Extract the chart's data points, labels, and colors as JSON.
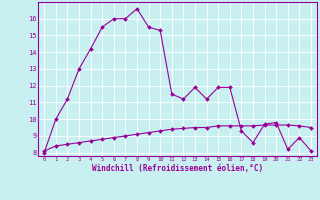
{
  "xlabel": "Windchill (Refroidissement éolien,°C)",
  "ylabel": "",
  "bg_color": "#c8f0f0",
  "line_color": "#990099",
  "grid_color": "#ffffff",
  "x_ticks": [
    0,
    1,
    2,
    3,
    4,
    5,
    6,
    7,
    8,
    9,
    10,
    11,
    12,
    13,
    14,
    15,
    16,
    17,
    18,
    19,
    20,
    21,
    22,
    23
  ],
  "y_ticks": [
    8,
    9,
    10,
    11,
    12,
    13,
    14,
    15,
    16
  ],
  "series1_x": [
    0,
    1,
    2,
    3,
    4,
    5,
    6,
    7,
    8,
    9,
    10,
    11,
    12,
    13,
    14,
    15,
    16,
    17,
    18,
    19,
    20,
    21,
    22,
    23
  ],
  "series1_y": [
    8.0,
    10.0,
    11.2,
    13.0,
    14.2,
    15.5,
    16.0,
    16.0,
    16.6,
    15.5,
    15.3,
    11.5,
    11.2,
    11.9,
    11.2,
    11.9,
    11.9,
    9.3,
    8.6,
    9.7,
    9.8,
    8.2,
    8.9,
    8.1
  ],
  "series2_x": [
    0,
    1,
    2,
    3,
    4,
    5,
    6,
    7,
    8,
    9,
    10,
    11,
    12,
    13,
    14,
    15,
    16,
    17,
    18,
    19,
    20,
    21,
    22,
    23
  ],
  "series2_y": [
    8.1,
    8.4,
    8.5,
    8.6,
    8.7,
    8.8,
    8.9,
    9.0,
    9.1,
    9.2,
    9.3,
    9.4,
    9.45,
    9.5,
    9.5,
    9.6,
    9.6,
    9.6,
    9.6,
    9.65,
    9.65,
    9.65,
    9.6,
    9.5
  ]
}
